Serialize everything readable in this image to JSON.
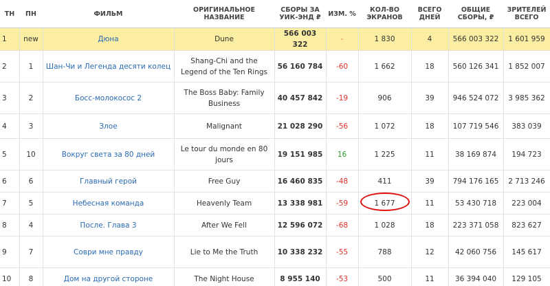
{
  "table": {
    "columns": [
      "ТН",
      "ПН",
      "ФИЛЬМ",
      "ОРИГИНАЛЬНОЕ НАЗВАНИЕ",
      "СБОРЫ ЗА УИК-ЭНД ₽",
      "ИЗМ. %",
      "КОЛ-ВО ЭКРАНОВ",
      "ВСЕГО ДНЕЙ",
      "ОБЩИЕ СБОРЫ, ₽",
      "ЗРИТЕЛЕЙ ВСЕГО"
    ],
    "rows": [
      [
        "1",
        "new",
        "Дюна",
        "Dune",
        "566 003 322",
        "-",
        "1 830",
        "4",
        "566 003 322",
        "1 601 959"
      ],
      [
        "2",
        "1",
        "Шан-Чи и Легенда десяти колец",
        "Shang-Chi and the Legend of the Ten Rings",
        "56 160 784",
        "-60",
        "1 662",
        "18",
        "560 126 341",
        "1 852 007"
      ],
      [
        "3",
        "2",
        "Босс-молокосос 2",
        "The Boss Baby: Family Business",
        "40 457 842",
        "-19",
        "906",
        "39",
        "946 524 072",
        "3 985 362"
      ],
      [
        "4",
        "3",
        "Злое",
        "Malignant",
        "21 028 290",
        "-56",
        "1 072",
        "18",
        "107 719 546",
        "383 039"
      ],
      [
        "5",
        "10",
        "Вокруг света за 80 дней",
        "Le tour du monde en 80 jours",
        "19 151 985",
        "16",
        "1 225",
        "11",
        "38 169 874",
        "194 723"
      ],
      [
        "6",
        "6",
        "Главный герой",
        "Free Guy",
        "16 460 835",
        "-48",
        "411",
        "39",
        "794 176 165",
        "2 713 246"
      ],
      [
        "7",
        "5",
        "Небесная команда",
        "Heavenly Team",
        "13 338 981",
        "-59",
        "1 677",
        "11",
        "53 430 718",
        "223 004"
      ],
      [
        "8",
        "4",
        "После. Глава 3",
        "After We Fell",
        "12 596 072",
        "-68",
        "1 028",
        "18",
        "223 371 058",
        "823 627"
      ],
      [
        "9",
        "7",
        "Соври мне правду",
        "Lie to Me the Truth",
        "10 338 232",
        "-55",
        "788",
        "12",
        "42 060 756",
        "145 617"
      ],
      [
        "10",
        "8",
        "Дом на другой стороне",
        "The Night House",
        "8 955 140",
        "-53",
        "500",
        "11",
        "36 394 040",
        "129 105"
      ]
    ]
  }
}
